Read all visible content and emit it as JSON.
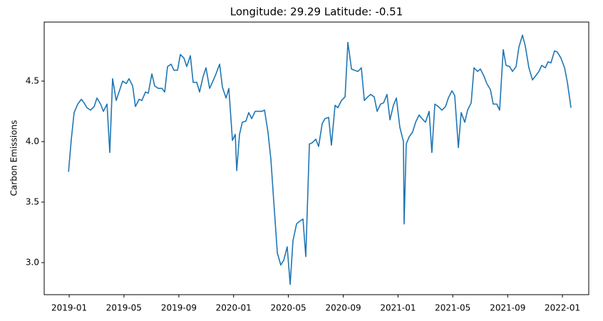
{
  "chart_data": {
    "type": "line",
    "title": "Longitude: 29.29 Latitude: -0.51",
    "ylabel": "Carbon Emissions",
    "color": "#1f77b4",
    "x": [
      2018.996,
      2019.013,
      2019.03,
      2019.052,
      2019.074,
      2019.091,
      2019.108,
      2019.13,
      2019.152,
      2019.169,
      2019.191,
      2019.208,
      2019.23,
      2019.247,
      2019.264,
      2019.286,
      2019.308,
      2019.325,
      2019.347,
      2019.364,
      2019.386,
      2019.403,
      2019.425,
      2019.442,
      2019.464,
      2019.481,
      2019.503,
      2019.52,
      2019.542,
      2019.564,
      2019.581,
      2019.598,
      2019.62,
      2019.637,
      2019.659,
      2019.676,
      2019.698,
      2019.715,
      2019.737,
      2019.754,
      2019.776,
      2019.793,
      2019.815,
      2019.832,
      2019.854,
      2019.871,
      2019.893,
      2019.915,
      2019.932,
      2019.954,
      2019.971,
      2019.993,
      2020.01,
      2020.019,
      2020.036,
      2020.053,
      2020.075,
      2020.092,
      2020.11,
      2020.131,
      2020.149,
      2020.17,
      2020.188,
      2020.209,
      2020.227,
      2020.244,
      2020.266,
      2020.287,
      2020.305,
      2020.326,
      2020.344,
      2020.361,
      2020.383,
      2020.4,
      2020.422,
      2020.439,
      2020.461,
      2020.478,
      2020.5,
      2020.517,
      2020.539,
      2020.556,
      2020.578,
      2020.595,
      2020.617,
      2020.634,
      2020.656,
      2020.678,
      2020.695,
      2020.717,
      2020.734,
      2020.756,
      2020.777,
      2020.795,
      2020.816,
      2020.834,
      2020.855,
      2020.873,
      2020.894,
      2020.912,
      2020.933,
      2020.951,
      2020.972,
      2020.99,
      2021.011,
      2021.033,
      2021.037,
      2021.05,
      2021.068,
      2021.089,
      2021.107,
      2021.128,
      2021.146,
      2021.167,
      2021.189,
      2021.206,
      2021.224,
      2021.245,
      2021.267,
      2021.289,
      2021.306,
      2021.328,
      2021.345,
      2021.367,
      2021.384,
      2021.406,
      2021.423,
      2021.445,
      2021.462,
      2021.484,
      2021.501,
      2021.523,
      2021.54,
      2021.562,
      2021.579,
      2021.601,
      2021.618,
      2021.64,
      2021.657,
      2021.679,
      2021.696,
      2021.718,
      2021.735,
      2021.757,
      2021.774,
      2021.796,
      2021.818,
      2021.835,
      2021.857,
      2021.874,
      2021.896,
      2021.913,
      2021.93,
      2021.952,
      2021.969,
      2021.991,
      2022.013,
      2022.03,
      2022.052
    ],
    "values": [
      3.75,
      4.02,
      4.24,
      4.31,
      4.35,
      4.32,
      4.28,
      4.26,
      4.29,
      4.36,
      4.31,
      4.25,
      4.31,
      3.91,
      4.52,
      4.34,
      4.43,
      4.5,
      4.48,
      4.52,
      4.46,
      4.29,
      4.35,
      4.34,
      4.41,
      4.4,
      4.56,
      4.46,
      4.44,
      4.44,
      4.41,
      4.62,
      4.64,
      4.59,
      4.59,
      4.72,
      4.69,
      4.62,
      4.71,
      4.49,
      4.49,
      4.41,
      4.54,
      4.61,
      4.44,
      4.49,
      4.56,
      4.64,
      4.45,
      4.36,
      4.44,
      4.01,
      4.06,
      3.76,
      4.06,
      4.16,
      4.17,
      4.24,
      4.19,
      4.25,
      4.25,
      4.25,
      4.26,
      4.08,
      3.85,
      3.51,
      3.08,
      2.98,
      3.02,
      3.13,
      2.82,
      3.18,
      3.32,
      3.34,
      3.36,
      3.05,
      3.98,
      3.99,
      4.02,
      3.96,
      4.15,
      4.19,
      4.2,
      3.97,
      4.3,
      4.28,
      4.34,
      4.37,
      4.82,
      4.6,
      4.59,
      4.58,
      4.61,
      4.34,
      4.37,
      4.39,
      4.37,
      4.25,
      4.31,
      4.32,
      4.39,
      4.18,
      4.3,
      4.36,
      4.12,
      4.0,
      3.32,
      3.98,
      4.04,
      4.08,
      4.16,
      4.22,
      4.19,
      4.16,
      4.25,
      3.91,
      4.31,
      4.29,
      4.26,
      4.29,
      4.36,
      4.42,
      4.38,
      3.95,
      4.24,
      4.16,
      4.26,
      4.32,
      4.61,
      4.58,
      4.6,
      4.54,
      4.48,
      4.43,
      4.31,
      4.31,
      4.26,
      4.76,
      4.63,
      4.62,
      4.58,
      4.62,
      4.78,
      4.88,
      4.79,
      4.61,
      4.51,
      4.54,
      4.58,
      4.63,
      4.61,
      4.66,
      4.65,
      4.75,
      4.74,
      4.69,
      4.61,
      4.49,
      4.28
    ],
    "xlim": [
      2018.848,
      2022.16
    ],
    "xticks": [
      {
        "value": 2019,
        "label": "2019-01"
      },
      {
        "value": 2019.333,
        "label": "2019-05"
      },
      {
        "value": 2019.667,
        "label": "2019-09"
      },
      {
        "value": 2020,
        "label": "2020-01"
      },
      {
        "value": 2020.333,
        "label": "2020-05"
      },
      {
        "value": 2020.667,
        "label": "2020-09"
      },
      {
        "value": 2021,
        "label": "2021-01"
      },
      {
        "value": 2021.333,
        "label": "2021-05"
      },
      {
        "value": 2021.667,
        "label": "2021-09"
      },
      {
        "value": 2022,
        "label": "2022-01"
      }
    ],
    "ylim": [
      2.735,
      4.988
    ],
    "yticks": [
      {
        "value": 3,
        "label": "3.0"
      },
      3.5,
      {
        "value": 4,
        "label": "4.0"
      },
      4.5
    ]
  }
}
